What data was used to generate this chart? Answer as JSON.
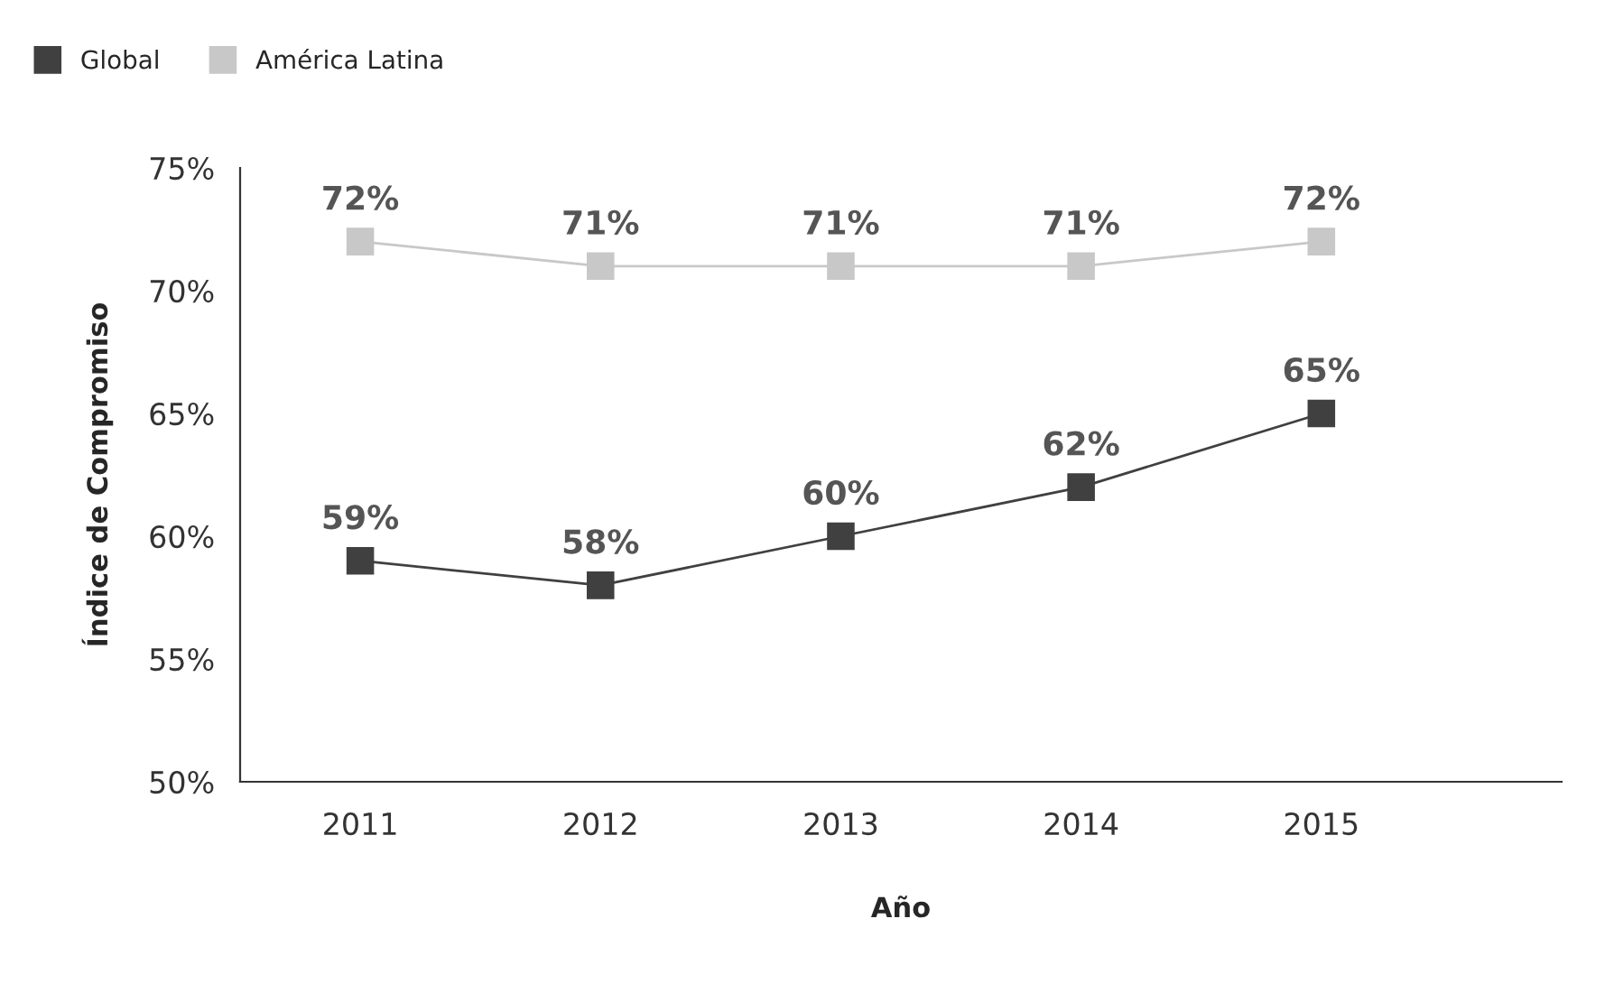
{
  "chart_data": {
    "type": "line",
    "xlabel": "Año",
    "ylabel": "Índice de Compromiso",
    "categories": [
      "2011",
      "2012",
      "2013",
      "2014",
      "2015"
    ],
    "series": [
      {
        "name": "Global",
        "color": "#404040",
        "values": [
          59,
          58,
          60,
          62,
          65
        ],
        "value_labels": [
          "59%",
          "58%",
          "60%",
          "62%",
          "65%"
        ]
      },
      {
        "name": "América Latina",
        "color": "#c8c8c8",
        "values": [
          72,
          71,
          71,
          71,
          72
        ],
        "value_labels": [
          "72%",
          "71%",
          "71%",
          "71%",
          "72%"
        ]
      }
    ],
    "ylim": [
      50,
      75
    ],
    "yticks": [
      {
        "value": 50,
        "label": "50%"
      },
      {
        "value": 55,
        "label": "55%"
      },
      {
        "value": 60,
        "label": "60%"
      },
      {
        "value": 65,
        "label": "65%"
      },
      {
        "value": 70,
        "label": "70%"
      },
      {
        "value": 75,
        "label": "75%"
      }
    ],
    "grid": false,
    "legend": "top left",
    "marker": "square",
    "line_style": "solid"
  }
}
